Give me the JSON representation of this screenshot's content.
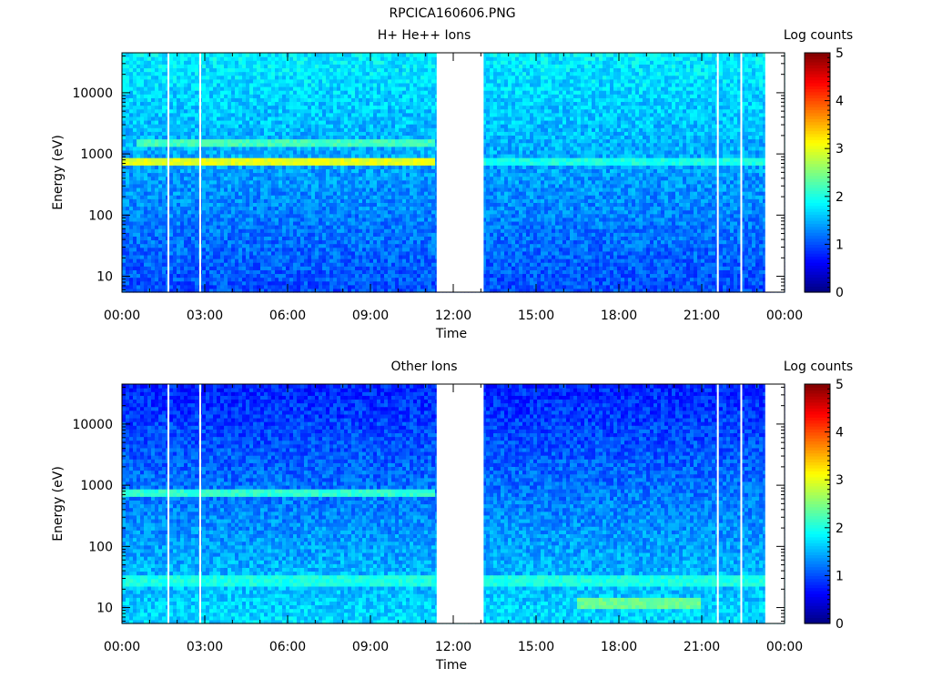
{
  "page_title": "RPCICA160606.PNG",
  "colors": {
    "colormap": [
      "#00007f",
      "#0000ff",
      "#007fff",
      "#00ffff",
      "#7fff7f",
      "#ffff00",
      "#ff7f00",
      "#ff0000",
      "#7f0000"
    ],
    "gap": "#ffffff"
  },
  "chart_data": [
    {
      "type": "heatmap",
      "title": "H+ He++ Ions",
      "xlabel": "Time",
      "ylabel": "Energy (eV)",
      "x_ticks": [
        "00:00",
        "03:00",
        "06:00",
        "09:00",
        "12:00",
        "15:00",
        "18:00",
        "21:00",
        "00:00"
      ],
      "x_range_hours": [
        0,
        24
      ],
      "y_scale": "log",
      "y_ticks": [
        "10",
        "100",
        "1000",
        "10000"
      ],
      "y_range_eV": [
        5.5,
        45000
      ],
      "colorbar": {
        "label": "Log counts",
        "ticks": [
          "0",
          "1",
          "2",
          "3",
          "4",
          "5"
        ],
        "range": [
          0,
          5
        ]
      },
      "data_gaps_hours": [
        [
          1.65,
          1.7
        ],
        [
          2.8,
          2.85
        ],
        [
          11.4,
          13.1
        ],
        [
          21.55,
          21.6
        ],
        [
          22.4,
          22.45
        ],
        [
          23.3,
          24.0
        ]
      ],
      "features": [
        {
          "energy_eV": 750,
          "hours": [
            0,
            11.4
          ],
          "log_counts": 3.0
        },
        {
          "energy_eV": 1550,
          "hours": [
            0.5,
            11.4
          ],
          "log_counts": 2.2
        },
        {
          "energy_eV": 750,
          "hours": [
            13.1,
            23.3
          ],
          "log_counts": 2.0
        }
      ],
      "background_log_counts": {
        "low_energy": 1.0,
        "high_energy": 1.8
      }
    },
    {
      "type": "heatmap",
      "title": "Other Ions",
      "xlabel": "Time",
      "ylabel": "Energy (eV)",
      "x_ticks": [
        "00:00",
        "03:00",
        "06:00",
        "09:00",
        "12:00",
        "15:00",
        "18:00",
        "21:00",
        "00:00"
      ],
      "x_range_hours": [
        0,
        24
      ],
      "y_scale": "log",
      "y_ticks": [
        "10",
        "100",
        "1000",
        "10000"
      ],
      "y_range_eV": [
        5.5,
        45000
      ],
      "colorbar": {
        "label": "Log counts",
        "ticks": [
          "0",
          "1",
          "2",
          "3",
          "4",
          "5"
        ],
        "range": [
          0,
          5
        ]
      },
      "data_gaps_hours": [
        [
          1.65,
          1.7
        ],
        [
          2.8,
          2.85
        ],
        [
          11.4,
          13.1
        ],
        [
          21.55,
          21.6
        ],
        [
          22.4,
          22.45
        ],
        [
          23.3,
          24.0
        ]
      ],
      "features": [
        {
          "energy_eV": 750,
          "hours": [
            0,
            11.4
          ],
          "log_counts": 2.1
        },
        {
          "energy_eV": 28,
          "hours": [
            0,
            23.3
          ],
          "log_counts": 2.0
        },
        {
          "energy_eV": 12,
          "hours": [
            16.5,
            21.0
          ],
          "log_counts": 2.4
        }
      ],
      "background_log_counts": {
        "low_energy": 1.7,
        "high_energy": 0.8
      }
    }
  ]
}
